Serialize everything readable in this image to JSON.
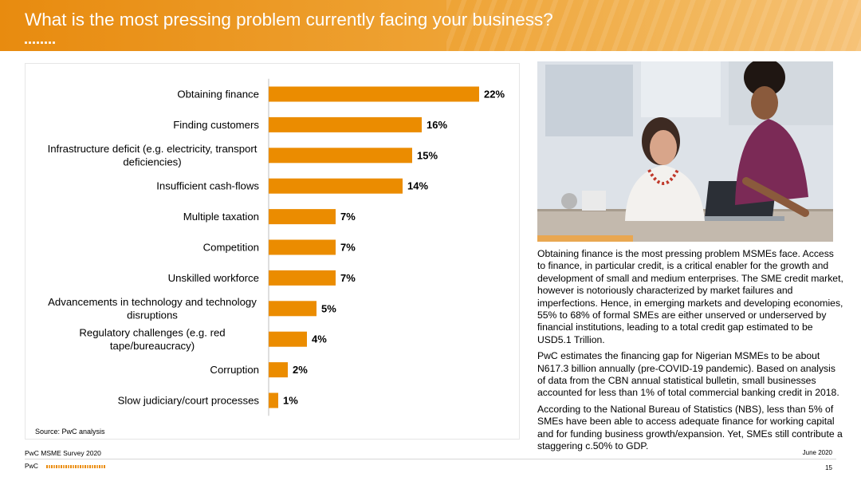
{
  "header": {
    "title": "What is the most pressing problem currently facing your business?"
  },
  "chart_data": {
    "type": "bar",
    "orientation": "horizontal",
    "categories": [
      "Obtaining finance",
      "Finding customers",
      "Infrastructure deficit (e.g. electricity, transport deficiencies)",
      "Insufficient cash-flows",
      "Multiple taxation",
      "Competition",
      "Unskilled workforce",
      "Advancements in technology and technology disruptions",
      "Regulatory challenges (e.g. red tape/bureaucracy)",
      "Corruption",
      "Slow judiciary/court processes"
    ],
    "category_lines": [
      [
        "Obtaining finance"
      ],
      [
        "Finding customers"
      ],
      [
        "Infrastructure deficit (e.g. electricity, transport",
        "deficiencies)"
      ],
      [
        "Insufficient cash-flows"
      ],
      [
        "Multiple taxation"
      ],
      [
        "Competition"
      ],
      [
        "Unskilled workforce"
      ],
      [
        "Advancements in technology and technology",
        "disruptions"
      ],
      [
        "Regulatory challenges (e.g. red",
        "tape/bureaucracy)"
      ],
      [
        "Corruption"
      ],
      [
        "Slow judiciary/court processes"
      ]
    ],
    "values": [
      22,
      16,
      15,
      14,
      7,
      7,
      7,
      5,
      4,
      2,
      1
    ],
    "data_labels": [
      "22%",
      "16%",
      "15%",
      "14%",
      "7%",
      "7%",
      "7%",
      "5%",
      "4%",
      "2%",
      "1%"
    ],
    "unit": "%",
    "bar_color": "#eb8c00",
    "source": "Source: PwC analysis"
  },
  "body": {
    "paragraphs": [
      "Obtaining finance is the most pressing problem MSMEs face. Access to finance, in particular credit, is a critical enabler for the growth and development of small and medium enterprises. The SME credit market, however is notoriously characterized by market failures and imperfections. Hence, in emerging markets and developing economies, 55% to 68% of formal SMEs are either unserved or underserved by financial institutions, leading to a total credit gap estimated to be USD5.1 Trillion.",
      "PwC estimates the financing gap for Nigerian MSMEs to be about N617.3 billion annually (pre-COVID-19 pandemic). Based on analysis of data from the CBN annual statistical bulletin, small businesses accounted for less than 1% of total commercial banking credit in 2018.",
      "According to the National Bureau of Statistics (NBS), less than 5% of SMEs have been able to access adequate finance for working capital and for funding business growth/expansion. Yet, SMEs still contribute a staggering c.50% to GDP."
    ]
  },
  "footer": {
    "survey": "PwC MSME Survey 2020",
    "date": "June 2020",
    "brand": "PwC",
    "page_number": "15"
  },
  "photo": {
    "icon": "business-women-photo"
  },
  "colors": {
    "accent": "#eb8c00",
    "header": "#e88b0f"
  }
}
